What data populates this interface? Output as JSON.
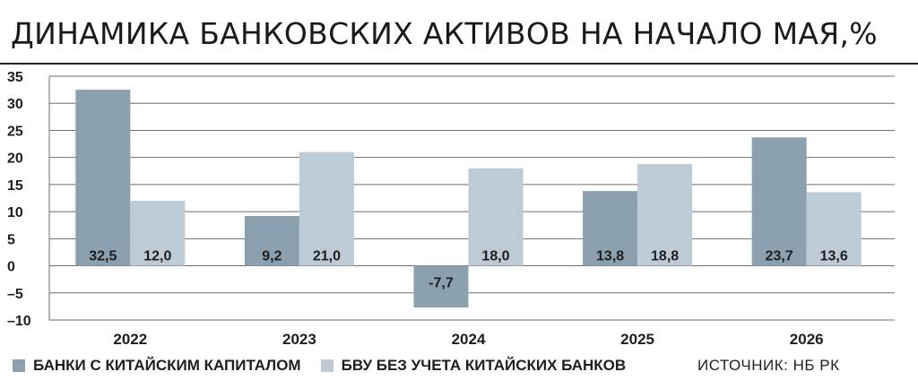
{
  "chart_data": {
    "type": "bar",
    "title": "ДИНАМИКА БАНКОВСКИХ АКТИВОВ НА НАЧАЛО МАЯ,%",
    "categories": [
      "2022",
      "2023",
      "2024",
      "2025",
      "2026"
    ],
    "series": [
      {
        "name": "БАНКИ С КИТАЙСКИМ КАПИТАЛОМ",
        "color": "#8aa0ae",
        "values": [
          32.5,
          9.2,
          -7.7,
          13.8,
          23.7
        ],
        "labels": [
          "32,5",
          "9,2",
          "-7,7",
          "13,8",
          "23,7"
        ]
      },
      {
        "name": "БВУ БЕЗ УЧЕТА КИТАЙСКИХ БАНКОВ",
        "color": "#bccbd6",
        "values": [
          12.0,
          21.0,
          18.0,
          18.8,
          13.6
        ],
        "labels": [
          "12,0",
          "21,0",
          "18,0",
          "18,8",
          "13,6"
        ]
      }
    ],
    "yticks": [
      35,
      30,
      25,
      20,
      15,
      10,
      5,
      0,
      -5,
      -10
    ],
    "ytick_labels": [
      "35",
      "30",
      "25",
      "20",
      "15",
      "10",
      "5",
      "0",
      "–5",
      "–10"
    ],
    "ylim": [
      -10,
      35
    ],
    "xlabel": "",
    "ylabel": "",
    "grid": true,
    "legend_position": "bottom-left"
  },
  "source": "ИСТОЧНИК: НБ РК"
}
